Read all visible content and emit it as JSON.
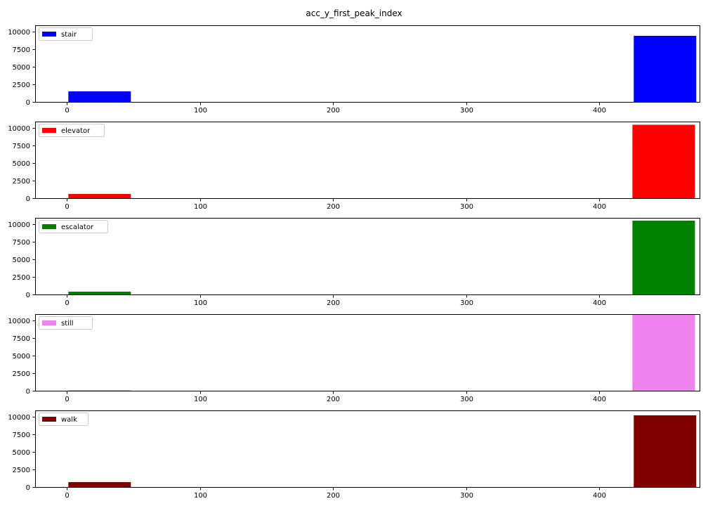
{
  "title": "acc_y_first_peak_index",
  "chart_data": [
    {
      "type": "bar",
      "label": "stair",
      "color": "#0000ff",
      "xlim": [
        -24,
        476
      ],
      "ylim": [
        0,
        10900
      ],
      "xticks": [
        0,
        100,
        200,
        300,
        400
      ],
      "yticks": [
        0,
        2500,
        5000,
        7500,
        10000
      ],
      "bars": [
        {
          "x0": 1,
          "x1": 48,
          "value": 1500
        },
        {
          "x0": 426,
          "x1": 473,
          "value": 9400
        }
      ],
      "legend": "top-left"
    },
    {
      "type": "bar",
      "label": "elevator",
      "color": "#ff0000",
      "xlim": [
        -24,
        476
      ],
      "ylim": [
        0,
        10900
      ],
      "xticks": [
        0,
        100,
        200,
        300,
        400
      ],
      "yticks": [
        0,
        2500,
        5000,
        7500,
        10000
      ],
      "bars": [
        {
          "x0": 1,
          "x1": 48,
          "value": 600
        },
        {
          "x0": 425,
          "x1": 472,
          "value": 10450
        }
      ],
      "legend": "top-left"
    },
    {
      "type": "bar",
      "label": "escalator",
      "color": "#008000",
      "xlim": [
        -24,
        476
      ],
      "ylim": [
        0,
        10900
      ],
      "xticks": [
        0,
        100,
        200,
        300,
        400
      ],
      "yticks": [
        0,
        2500,
        5000,
        7500,
        10000
      ],
      "bars": [
        {
          "x0": 1,
          "x1": 48,
          "value": 400
        },
        {
          "x0": 425,
          "x1": 472,
          "value": 10500
        }
      ],
      "legend": "top-left"
    },
    {
      "type": "bar",
      "label": "still",
      "color": "#ee82ee",
      "xlim": [
        -24,
        476
      ],
      "ylim": [
        0,
        10900
      ],
      "xticks": [
        0,
        100,
        200,
        300,
        400
      ],
      "yticks": [
        0,
        2500,
        5000,
        7500,
        10000
      ],
      "bars": [
        {
          "x0": 1,
          "x1": 48,
          "value": 80
        },
        {
          "x0": 425,
          "x1": 472,
          "value": 10900
        }
      ],
      "legend": "top-left"
    },
    {
      "type": "bar",
      "label": "walk",
      "color": "#800000",
      "xlim": [
        -24,
        476
      ],
      "ylim": [
        0,
        10900
      ],
      "xticks": [
        0,
        100,
        200,
        300,
        400
      ],
      "yticks": [
        0,
        2500,
        5000,
        7500,
        10000
      ],
      "bars": [
        {
          "x0": 1,
          "x1": 48,
          "value": 700
        },
        {
          "x0": 426,
          "x1": 473,
          "value": 10200
        }
      ],
      "legend": "top-left"
    }
  ]
}
